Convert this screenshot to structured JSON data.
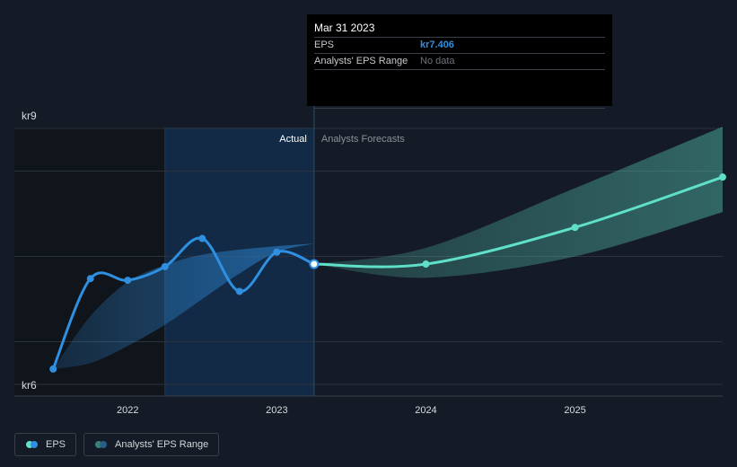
{
  "chart_data": {
    "type": "line",
    "title": "",
    "y_unit_prefix": "kr",
    "ylim": [
      6,
      9
    ],
    "y_tick_values": [
      6,
      9
    ],
    "y_tick_labels": [
      "kr6",
      "kr9"
    ],
    "y_gridlines": [
      6,
      6.5,
      7.5,
      8.5,
      9
    ],
    "x_ticks": [
      {
        "label": "2022",
        "t": 2022.0
      },
      {
        "label": "2023",
        "t": 2023.0
      },
      {
        "label": "2024",
        "t": 2024.0
      },
      {
        "label": "2025",
        "t": 2025.0
      }
    ],
    "xlim": [
      2021.24,
      2025.99
    ],
    "actual_label": "Actual",
    "forecast_label": "Analysts Forecasts",
    "series": [
      {
        "name": "EPS",
        "kind": "actual",
        "color": "#2f8fe0",
        "points": [
          [
            2021.5,
            6.18
          ],
          [
            2021.75,
            7.24
          ],
          [
            2022.0,
            7.22
          ],
          [
            2022.25,
            7.38
          ],
          [
            2022.5,
            7.71
          ],
          [
            2022.75,
            7.09
          ],
          [
            2023.0,
            7.55
          ],
          [
            2023.25,
            7.41
          ]
        ]
      },
      {
        "name": "EPS",
        "kind": "forecast",
        "color": "#5fe0c8",
        "points": [
          [
            2023.25,
            7.41
          ],
          [
            2024.0,
            7.41
          ],
          [
            2025.0,
            7.84
          ],
          [
            2025.99,
            8.43
          ]
        ]
      }
    ],
    "ranges": [
      {
        "name": "Analysts' EPS Range",
        "kind": "history",
        "color": "#2f8fe0",
        "x": [
          2021.5,
          2021.75,
          2022.0,
          2022.25,
          2022.5,
          2022.75,
          2023.0,
          2023.25
        ],
        "upper": [
          6.18,
          6.8,
          7.2,
          7.4,
          7.52,
          7.58,
          7.62,
          7.65
        ],
        "lower": [
          6.18,
          6.25,
          6.45,
          6.7,
          7.0,
          7.3,
          7.55,
          7.65
        ]
      },
      {
        "name": "Analysts' EPS Range",
        "kind": "forecast",
        "color": "#5fe0c8",
        "x": [
          2023.25,
          2024.0,
          2025.0,
          2025.99
        ],
        "upper": [
          7.41,
          7.6,
          8.3,
          9.02
        ],
        "lower": [
          7.41,
          7.25,
          7.5,
          8.02
        ]
      }
    ],
    "past_band_start": 2022.25,
    "divider_at": 2023.25,
    "highlight_point": [
      2023.25,
      7.41
    ]
  },
  "tooltip": {
    "date": "Mar 31 2023",
    "eps_label": "EPS",
    "eps_value": "kr7.406",
    "range_label": "Analysts' EPS Range",
    "range_value": "No data"
  },
  "legend": [
    {
      "label": "EPS",
      "color_a": "#5fe0c8",
      "color_b": "#2f8fe0"
    },
    {
      "label": "Analysts' EPS Range",
      "color_a": "#3a7f78",
      "color_b": "#2a5f8a"
    }
  ],
  "colors": {
    "background": "#151b26",
    "past_shade": "#10141b",
    "band": "#122a45",
    "grid": "#2c323c",
    "axis_text": "#d8d9db",
    "divider": "#2b4d6e"
  }
}
